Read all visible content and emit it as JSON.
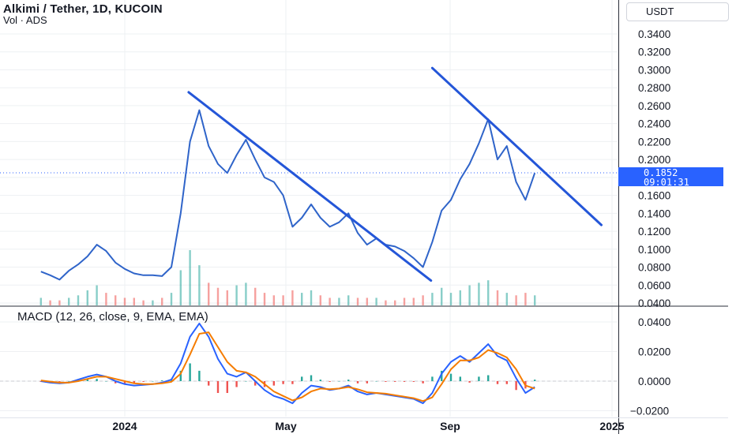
{
  "header": {
    "title": "Alkimi / Tether, 1D, KUCOIN",
    "subtitle": "Vol · ADS",
    "currency": "USDT"
  },
  "last_price": {
    "value": "0.1852",
    "countdown": "09:01:31"
  },
  "macd_panel": {
    "label": "MACD (12, 26, close, 9, EMA, EMA)"
  },
  "colors": {
    "price_line": "#2f64c9",
    "trendline": "#2456d8",
    "macd_line": "#2962ff",
    "signal_line": "#f57c00",
    "vol_up": "#26a69a",
    "vol_down": "#ef5350",
    "grid": "#eef0f3",
    "price_tag_bg": "#2962ff"
  },
  "chart_data": [
    {
      "type": "line",
      "name": "price",
      "x": [
        "2023-10-30",
        "2023-11-06",
        "2023-11-13",
        "2023-11-20",
        "2023-11-27",
        "2023-12-04",
        "2023-12-11",
        "2023-12-18",
        "2023-12-25",
        "2024-01-01",
        "2024-01-08",
        "2024-01-15",
        "2024-01-22",
        "2024-01-29",
        "2024-02-05",
        "2024-02-12",
        "2024-02-19",
        "2024-02-26",
        "2024-03-04",
        "2024-03-11",
        "2024-03-18",
        "2024-03-25",
        "2024-04-01",
        "2024-04-08",
        "2024-04-15",
        "2024-04-22",
        "2024-04-29",
        "2024-05-06",
        "2024-05-13",
        "2024-05-20",
        "2024-05-27",
        "2024-06-03",
        "2024-06-10",
        "2024-06-17",
        "2024-06-24",
        "2024-07-01",
        "2024-07-08",
        "2024-07-15",
        "2024-07-22",
        "2024-07-29",
        "2024-08-05",
        "2024-08-12",
        "2024-08-19",
        "2024-08-26",
        "2024-09-02",
        "2024-09-09",
        "2024-09-16",
        "2024-09-23",
        "2024-09-30",
        "2024-10-07",
        "2024-10-14",
        "2024-10-21",
        "2024-10-28",
        "2024-11-04"
      ],
      "values": [
        0.075,
        0.071,
        0.066,
        0.076,
        0.083,
        0.092,
        0.105,
        0.098,
        0.085,
        0.078,
        0.073,
        0.071,
        0.071,
        0.07,
        0.08,
        0.14,
        0.22,
        0.255,
        0.215,
        0.195,
        0.185,
        0.205,
        0.222,
        0.2,
        0.18,
        0.175,
        0.16,
        0.125,
        0.135,
        0.15,
        0.135,
        0.125,
        0.13,
        0.14,
        0.118,
        0.105,
        0.112,
        0.105,
        0.103,
        0.098,
        0.09,
        0.08,
        0.108,
        0.143,
        0.155,
        0.178,
        0.195,
        0.218,
        0.245,
        0.2,
        0.215,
        0.175,
        0.155,
        0.185
      ],
      "ylim": [
        0.04,
        0.36
      ],
      "y_ticks": [
        "0.3400",
        "0.3200",
        "0.3000",
        "0.2800",
        "0.2600",
        "0.2400",
        "0.2200",
        "0.2000",
        "0.1600",
        "0.1400",
        "0.1200",
        "0.1000",
        "0.0800",
        "0.0600",
        "0.0400"
      ],
      "x_ticks": [
        "2024",
        "May",
        "Sep",
        "2025"
      ],
      "trendlines": [
        {
          "from": [
            "2024-02-18",
            0.275
          ],
          "to": [
            "2024-08-18",
            0.065
          ]
        },
        {
          "from": [
            "2024-08-19",
            0.302
          ],
          "to": [
            "2024-12-24",
            0.127
          ]
        }
      ],
      "volume": [
        3,
        2,
        2,
        3,
        4,
        6,
        8,
        5,
        4,
        3,
        3,
        2,
        2,
        3,
        5,
        14,
        22,
        16,
        9,
        7,
        6,
        8,
        9,
        7,
        5,
        4,
        4,
        6,
        5,
        6,
        4,
        3,
        3,
        4,
        3,
        3,
        3,
        2,
        2,
        3,
        3,
        4,
        5,
        7,
        5,
        6,
        8,
        9,
        10,
        6,
        5,
        4,
        5,
        4
      ],
      "volume_up": [
        true,
        false,
        false,
        true,
        true,
        true,
        true,
        false,
        false,
        false,
        false,
        false,
        true,
        false,
        true,
        true,
        true,
        true,
        false,
        false,
        false,
        true,
        true,
        false,
        false,
        false,
        false,
        false,
        true,
        true,
        false,
        false,
        true,
        true,
        false,
        false,
        true,
        false,
        false,
        false,
        false,
        false,
        true,
        true,
        true,
        true,
        true,
        true,
        true,
        false,
        true,
        false,
        false,
        true
      ]
    },
    {
      "type": "line",
      "name": "MACD",
      "x": [
        "2023-10-30",
        "2023-11-06",
        "2023-11-13",
        "2023-11-20",
        "2023-11-27",
        "2023-12-04",
        "2023-12-11",
        "2023-12-18",
        "2023-12-25",
        "2024-01-01",
        "2024-01-08",
        "2024-01-15",
        "2024-01-22",
        "2024-01-29",
        "2024-02-05",
        "2024-02-12",
        "2024-02-19",
        "2024-02-26",
        "2024-03-04",
        "2024-03-11",
        "2024-03-18",
        "2024-03-25",
        "2024-04-01",
        "2024-04-08",
        "2024-04-15",
        "2024-04-22",
        "2024-04-29",
        "2024-05-06",
        "2024-05-13",
        "2024-05-20",
        "2024-05-27",
        "2024-06-03",
        "2024-06-10",
        "2024-06-17",
        "2024-06-24",
        "2024-07-01",
        "2024-07-08",
        "2024-07-15",
        "2024-07-22",
        "2024-07-29",
        "2024-08-05",
        "2024-08-12",
        "2024-08-19",
        "2024-08-26",
        "2024-09-02",
        "2024-09-09",
        "2024-09-16",
        "2024-09-23",
        "2024-09-30",
        "2024-10-07",
        "2024-10-14",
        "2024-10-21",
        "2024-10-28",
        "2024-11-04"
      ],
      "series": [
        {
          "name": "MACD",
          "values": [
            0.0,
            -0.001,
            -0.0015,
            -0.001,
            0.001,
            0.003,
            0.0045,
            0.003,
            0.0,
            -0.002,
            -0.003,
            -0.0025,
            -0.002,
            -0.001,
            0.001,
            0.012,
            0.03,
            0.039,
            0.03,
            0.015,
            0.005,
            0.003,
            0.006,
            0.0,
            -0.006,
            -0.01,
            -0.012,
            -0.015,
            -0.008,
            -0.003,
            -0.004,
            -0.006,
            -0.005,
            -0.003,
            -0.007,
            -0.009,
            -0.008,
            -0.009,
            -0.01,
            -0.011,
            -0.012,
            -0.015,
            -0.008,
            0.005,
            0.013,
            0.017,
            0.013,
            0.019,
            0.025,
            0.017,
            0.014,
            0.002,
            -0.008,
            -0.004
          ]
        },
        {
          "name": "Signal",
          "values": [
            0.0005,
            -0.0003,
            -0.001,
            -0.001,
            0.0,
            0.0015,
            0.003,
            0.003,
            0.0015,
            0.0,
            -0.0015,
            -0.002,
            -0.002,
            -0.0015,
            -0.0005,
            0.005,
            0.018,
            0.032,
            0.033,
            0.023,
            0.013,
            0.007,
            0.006,
            0.003,
            -0.002,
            -0.007,
            -0.01,
            -0.013,
            -0.011,
            -0.007,
            -0.005,
            -0.0055,
            -0.005,
            -0.004,
            -0.0055,
            -0.0075,
            -0.008,
            -0.0085,
            -0.0095,
            -0.0105,
            -0.0115,
            -0.0135,
            -0.011,
            -0.002,
            0.008,
            0.014,
            0.014,
            0.016,
            0.021,
            0.019,
            0.016,
            0.008,
            -0.003,
            -0.005
          ]
        }
      ],
      "histogram": [
        -0.0005,
        -0.0007,
        -0.0005,
        0.0,
        0.001,
        0.0015,
        0.0015,
        0.0,
        -0.0015,
        -0.002,
        -0.0015,
        -0.0005,
        0.0,
        0.0005,
        0.0015,
        0.007,
        0.012,
        0.007,
        -0.003,
        -0.008,
        -0.008,
        -0.004,
        0.0,
        -0.003,
        -0.004,
        -0.003,
        -0.002,
        -0.002,
        0.003,
        0.004,
        0.001,
        -0.0005,
        0.0,
        0.001,
        -0.0015,
        -0.0015,
        0.0,
        -0.0005,
        -0.0005,
        -0.0005,
        -0.0005,
        -0.0015,
        0.003,
        0.007,
        0.005,
        0.003,
        -0.001,
        0.003,
        0.004,
        -0.002,
        -0.002,
        -0.006,
        -0.005,
        0.001
      ],
      "ylim": [
        -0.025,
        0.045
      ],
      "y_ticks": [
        "0.0400",
        "0.0200",
        "0.0000",
        "−0.0200"
      ]
    }
  ]
}
